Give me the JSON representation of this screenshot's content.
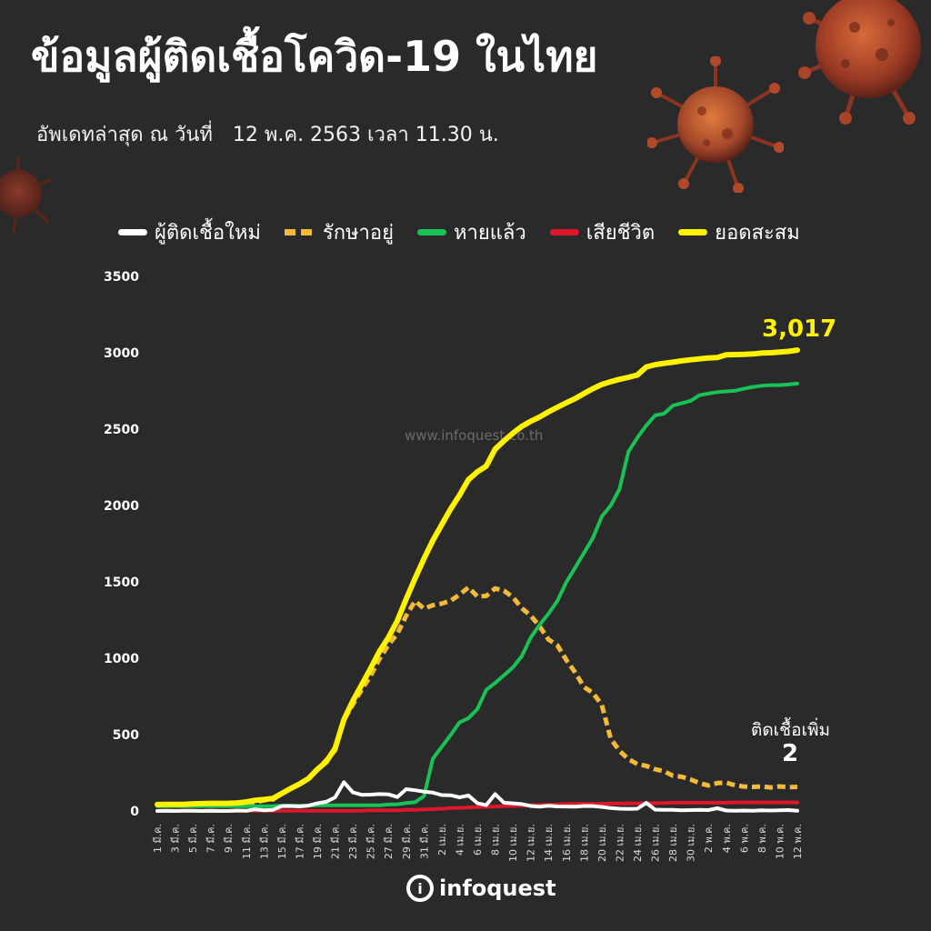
{
  "header": {
    "title": "ข้อมูลผู้ติดเชื้อโควิด-19 ในไทย",
    "subtitle_prefix": "อัพเดทล่าสุด ณ วันที่",
    "subtitle_date": "12 พ.ค. 2563 เวลา 11.30 น."
  },
  "watermark": "www.infoquest.co.th",
  "logo": {
    "mark": "i",
    "text": "infoquest"
  },
  "annotations": {
    "new_cases_label": "ติดเชื้อเพิ่ม",
    "new_cases_value": "2",
    "total_value": "3,017"
  },
  "colors": {
    "background": "#2b2a2a",
    "new_cases": "#ffffff",
    "active": "#f3b93a",
    "recovered": "#19c255",
    "deaths": "#e0162b",
    "cumulative": "#fff200"
  },
  "chart_data": {
    "type": "line",
    "xlabel": "",
    "ylabel": "",
    "ylim": [
      0,
      3500
    ],
    "yticks": [
      0,
      500,
      1000,
      1500,
      2000,
      2500,
      3000,
      3500
    ],
    "grid": false,
    "legend_position": "top",
    "x": [
      "1 มี.ค.",
      "2 มี.ค.",
      "3 มี.ค.",
      "4 มี.ค.",
      "5 มี.ค.",
      "6 มี.ค.",
      "7 มี.ค.",
      "8 มี.ค.",
      "9 มี.ค.",
      "10 มี.ค.",
      "11 มี.ค.",
      "12 มี.ค.",
      "13 มี.ค.",
      "14 มี.ค.",
      "15 มี.ค.",
      "16 มี.ค.",
      "17 มี.ค.",
      "18 มี.ค.",
      "19 มี.ค.",
      "20 มี.ค.",
      "21 มี.ค.",
      "22 มี.ค.",
      "23 มี.ค.",
      "24 มี.ค.",
      "25 มี.ค.",
      "26 มี.ค.",
      "27 มี.ค.",
      "28 มี.ค.",
      "29 มี.ค.",
      "30 มี.ค.",
      "31 มี.ค.",
      "1 เม.ย.",
      "2 เม.ย.",
      "3 เม.ย.",
      "4 เม.ย.",
      "5 เม.ย.",
      "6 เม.ย.",
      "7 เม.ย.",
      "8 เม.ย.",
      "9 เม.ย.",
      "10 เม.ย.",
      "11 เม.ย.",
      "12 เม.ย.",
      "13 เม.ย.",
      "14 เม.ย.",
      "15 เม.ย.",
      "16 เม.ย.",
      "17 เม.ย.",
      "18 เม.ย.",
      "19 เม.ย.",
      "20 เม.ย.",
      "21 เม.ย.",
      "22 เม.ย.",
      "23 เม.ย.",
      "24 เม.ย.",
      "25 เม.ย.",
      "26 เม.ย.",
      "27 เม.ย.",
      "28 เม.ย.",
      "29 เม.ย.",
      "30 เม.ย.",
      "1 พ.ค.",
      "2 พ.ค.",
      "3 พ.ค.",
      "4 พ.ค.",
      "5 พ.ค.",
      "6 พ.ค.",
      "7 พ.ค.",
      "8 พ.ค.",
      "9 พ.ค.",
      "10 พ.ค.",
      "11 พ.ค.",
      "12 พ.ค."
    ],
    "xtick_labels": [
      "1 มี.ค.",
      "3 มี.ค.",
      "5 มี.ค.",
      "7 มี.ค.",
      "9 มี.ค.",
      "11 มี.ค.",
      "13 มี.ค.",
      "15 มี.ค.",
      "17 มี.ค.",
      "19 มี.ค.",
      "21 มี.ค.",
      "23 มี.ค.",
      "25 มี.ค.",
      "27 มี.ค.",
      "29 มี.ค.",
      "31 มี.ค.",
      "2 เม.ย.",
      "4 เม.ย.",
      "6 เม.ย.",
      "8 เม.ย.",
      "10 เม.ย.",
      "12 เม.ย.",
      "14 เม.ย.",
      "16 เม.ย.",
      "18 เม.ย.",
      "20 เม.ย.",
      "22 เม.ย.",
      "24 เม.ย.",
      "26 เม.ย.",
      "28 เม.ย.",
      "30 เม.ย.",
      "2 พ.ค.",
      "4 พ.ค.",
      "6 พ.ค.",
      "8 พ.ค.",
      "10 พ.ค.",
      "12 พ.ค."
    ],
    "series": [
      {
        "name": "ผู้ติดเชื้อใหม่",
        "style": "solid",
        "values": [
          0,
          1,
          0,
          1,
          1,
          0,
          2,
          0,
          0,
          3,
          1,
          11,
          5,
          7,
          32,
          33,
          30,
          35,
          50,
          60,
          89,
          188,
          122,
          106,
          107,
          111,
          109,
          91,
          143,
          136,
          127,
          120,
          104,
          103,
          89,
          102,
          51,
          38,
          111,
          54,
          50,
          45,
          33,
          28,
          34,
          30,
          29,
          28,
          33,
          32,
          27,
          19,
          15,
          13,
          15,
          53,
          9,
          7,
          7,
          4,
          6,
          7,
          6,
          18,
          3,
          1,
          3,
          1,
          5,
          3,
          4,
          6,
          2
        ]
      },
      {
        "name": "รักษาอยู่",
        "style": "dashed",
        "values": [
          40,
          40,
          41,
          42,
          43,
          43,
          45,
          45,
          45,
          48,
          49,
          55,
          70,
          75,
          114,
          147,
          177,
          212,
          272,
          333,
          397,
          599,
          697,
          794,
          885,
          996,
          1087,
          1160,
          1279,
          1375,
          1325,
          1347,
          1358,
          1377,
          1416,
          1464,
          1405,
          1408,
          1457,
          1442,
          1400,
          1328,
          1279,
          1210,
          1123,
          1085,
          989,
          907,
          812,
          773,
          695,
          474,
          394,
          339,
          307,
          295,
          273,
          261,
          231,
          224,
          206,
          183,
          167,
          183,
          186,
          168,
          160,
          158,
          161,
          154,
          161,
          156,
          158
        ]
      },
      {
        "name": "หายแล้ว",
        "style": "solid",
        "values": [
          31,
          31,
          31,
          31,
          31,
          31,
          31,
          31,
          31,
          31,
          31,
          31,
          31,
          31,
          35,
          35,
          35,
          35,
          37,
          37,
          37,
          37,
          37,
          37,
          37,
          37,
          42,
          44,
          52,
          58,
          97,
          342,
          420,
          498,
          580,
          608,
          666,
          793,
          838,
          888,
          940,
          1013,
          1135,
          1218,
          1291,
          1375,
          1497,
          1593,
          1689,
          1787,
          1928,
          1999,
          2108,
          2352,
          2444,
          2523,
          2590,
          2601,
          2654,
          2669,
          2686,
          2722,
          2733,
          2743,
          2747,
          2751,
          2765,
          2776,
          2784,
          2788,
          2788,
          2792,
          2798
        ]
      },
      {
        "name": "เสียชีวิต",
        "style": "solid",
        "values": [
          1,
          1,
          1,
          1,
          1,
          1,
          1,
          1,
          1,
          1,
          1,
          1,
          1,
          1,
          1,
          1,
          1,
          1,
          1,
          1,
          1,
          1,
          1,
          1,
          4,
          4,
          5,
          5,
          7,
          7,
          10,
          12,
          15,
          19,
          20,
          23,
          26,
          27,
          30,
          32,
          33,
          35,
          38,
          40,
          41,
          42,
          46,
          47,
          47,
          47,
          47,
          49,
          49,
          50,
          50,
          51,
          51,
          52,
          54,
          54,
          54,
          54,
          54,
          54,
          54,
          56,
          56,
          56,
          56,
          56,
          56,
          56,
          56
        ]
      },
      {
        "name": "ยอดสะสม",
        "style": "solid",
        "values": [
          42,
          43,
          43,
          43,
          47,
          48,
          50,
          50,
          50,
          53,
          59,
          70,
          75,
          82,
          114,
          147,
          177,
          212,
          272,
          322,
          411,
          599,
          721,
          827,
          934,
          1045,
          1136,
          1245,
          1388,
          1524,
          1651,
          1771,
          1875,
          1978,
          2067,
          2169,
          2220,
          2258,
          2369,
          2423,
          2473,
          2518,
          2551,
          2579,
          2613,
          2643,
          2672,
          2700,
          2733,
          2765,
          2792,
          2811,
          2826,
          2839,
          2854,
          2907,
          2922,
          2931,
          2938,
          2947,
          2954,
          2960,
          2966,
          2969,
          2987,
          2988,
          2989,
          2992,
          2998,
          3000,
          3004,
          3009,
          3017
        ]
      }
    ]
  }
}
